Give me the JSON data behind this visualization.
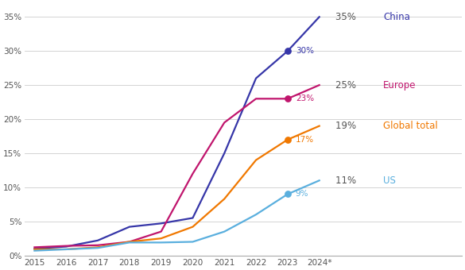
{
  "years": [
    2015,
    2016,
    2017,
    2018,
    2019,
    2020,
    2021,
    2022,
    2023,
    2024
  ],
  "china": [
    1.0,
    1.3,
    2.2,
    4.2,
    4.7,
    5.5,
    15.0,
    26.0,
    30.0,
    35.0
  ],
  "europe": [
    1.2,
    1.4,
    1.5,
    2.0,
    3.5,
    12.0,
    19.5,
    23.0,
    23.0,
    25.0
  ],
  "global": [
    0.9,
    0.9,
    1.2,
    2.0,
    2.5,
    4.2,
    8.3,
    14.0,
    17.0,
    19.0
  ],
  "us": [
    0.7,
    0.9,
    1.1,
    1.9,
    1.9,
    2.0,
    3.5,
    6.0,
    9.0,
    11.0
  ],
  "china_color": "#3636a8",
  "europe_color": "#c0156d",
  "global_color": "#f07800",
  "us_color": "#5aafde",
  "label_number_color": "#555555",
  "china_end_pct": "35%",
  "china_end_name": "China",
  "europe_end_pct": "25%",
  "europe_end_name": "Europe",
  "global_end_pct": "19%",
  "global_end_name": "Global total",
  "us_end_pct": "11%",
  "us_end_name": "US",
  "china_2023_label": "30%",
  "europe_2023_label": "23%",
  "global_2023_label": "17%",
  "us_2023_label": "9%",
  "ylim": [
    0,
    37
  ],
  "yticks": [
    0,
    5,
    10,
    15,
    20,
    25,
    30,
    35
  ],
  "background_color": "#ffffff",
  "grid_color": "#cccccc"
}
